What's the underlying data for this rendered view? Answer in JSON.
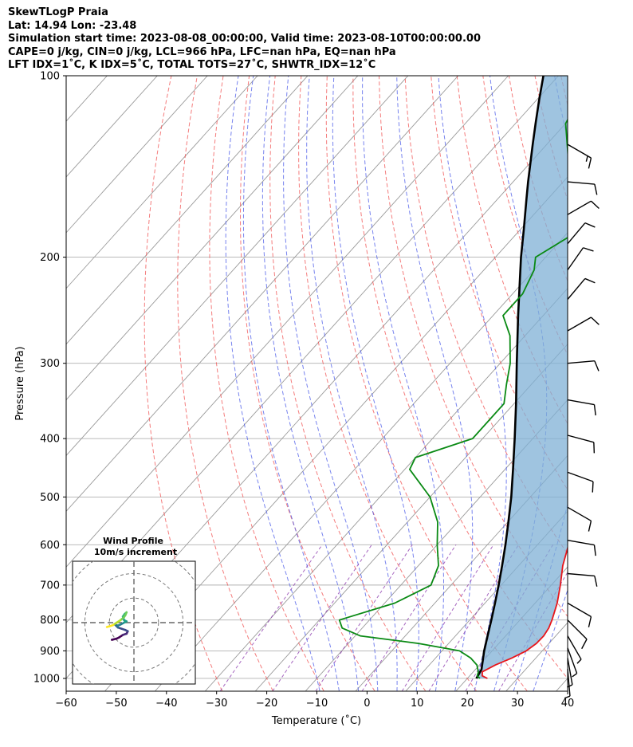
{
  "header": {
    "line1": "SkewTLogP Praia",
    "line2": "Lat: 14.94   Lon: -23.48",
    "line3": "Simulation start time: 2023-08-08_00:00:00, Valid time: 2023-08-10T00:00:00.00",
    "line4": "CAPE=0 j/kg, CIN=0 j/kg, LCL=966 hPa, LFC=nan hPa, EQ=nan hPa",
    "line5": "LFT IDX=1˚C, K IDX=5˚C, TOTAL TOTS=27˚C, SHWTR_IDX=12˚C"
  },
  "chart_data": {
    "type": "line",
    "title": "SkewTLogP Praia",
    "xlabel": "Temperature (˚C)",
    "ylabel": "Pressure (hPa)",
    "xlim": [
      -60,
      40
    ],
    "ylim": [
      1050,
      100
    ],
    "y_scale": "log",
    "grid": true,
    "x_ticks": [
      -60,
      -50,
      -40,
      -30,
      -20,
      -10,
      0,
      10,
      20,
      30,
      40
    ],
    "y_ticks": [
      100,
      200,
      300,
      400,
      500,
      600,
      700,
      800,
      900,
      1000
    ],
    "colors": {
      "temperature": "#e8161b",
      "dewpoint": "#0a8a14",
      "parcel": "#000000",
      "cape_fill": "#7fb0d6",
      "dry_adiabat": "#f05050",
      "moist_adiabat": "#4a5ae8",
      "mixing_ratio": "#9040b0",
      "isotherm": "#9a9a9a"
    },
    "series": [
      {
        "name": "temperature",
        "points": [
          [
            1000,
            24
          ],
          [
            990,
            22.5
          ],
          [
            975,
            21.8
          ],
          [
            950,
            23.2
          ],
          [
            925,
            25.2
          ],
          [
            900,
            26.8
          ],
          [
            875,
            27.5
          ],
          [
            850,
            27.6
          ],
          [
            825,
            27.2
          ],
          [
            800,
            26.4
          ],
          [
            750,
            24.4
          ],
          [
            700,
            21.8
          ],
          [
            650,
            18.8
          ],
          [
            600,
            16.2
          ],
          [
            550,
            13.4
          ],
          [
            500,
            10.4
          ],
          [
            450,
            7.2
          ],
          [
            400,
            4.2
          ],
          [
            350,
            -1.5
          ],
          [
            300,
            -8.5
          ],
          [
            250,
            -17.5
          ],
          [
            200,
            -28
          ],
          [
            180,
            -33
          ],
          [
            160,
            -40
          ],
          [
            150,
            -44
          ],
          [
            140,
            -48.5
          ],
          [
            130,
            -53
          ],
          [
            120,
            -58
          ],
          [
            110,
            -63
          ],
          [
            100,
            -67
          ]
        ]
      },
      {
        "name": "dewpoint",
        "points": [
          [
            1000,
            22.5
          ],
          [
            990,
            21.5
          ],
          [
            975,
            21
          ],
          [
            950,
            19.5
          ],
          [
            925,
            17
          ],
          [
            900,
            13.5
          ],
          [
            875,
            4
          ],
          [
            850,
            -9
          ],
          [
            825,
            -14
          ],
          [
            800,
            -16
          ],
          [
            750,
            -8
          ],
          [
            700,
            -4
          ],
          [
            650,
            -6
          ],
          [
            600,
            -10
          ],
          [
            550,
            -14
          ],
          [
            500,
            -20
          ],
          [
            450,
            -29
          ],
          [
            430,
            -30
          ],
          [
            400,
            -22
          ],
          [
            350,
            -22
          ],
          [
            325,
            -25
          ],
          [
            300,
            -28
          ],
          [
            270,
            -33
          ],
          [
            250,
            -38
          ],
          [
            230,
            -38
          ],
          [
            210,
            -40
          ],
          [
            200,
            -42
          ],
          [
            185,
            -39
          ],
          [
            170,
            -41
          ],
          [
            150,
            -48
          ],
          [
            135,
            -54
          ],
          [
            120,
            -60
          ],
          [
            108,
            -62
          ],
          [
            100,
            -64
          ]
        ]
      },
      {
        "name": "parcel",
        "points": [
          [
            1000,
            21.8
          ],
          [
            966,
            21.2
          ],
          [
            900,
            18.4
          ],
          [
            850,
            16.4
          ],
          [
            800,
            14.3
          ],
          [
            750,
            12
          ],
          [
            700,
            9.5
          ],
          [
            650,
            6.7
          ],
          [
            600,
            3.6
          ],
          [
            550,
            0.1
          ],
          [
            500,
            -3.8
          ],
          [
            450,
            -8.4
          ],
          [
            400,
            -13.6
          ],
          [
            350,
            -19.6
          ],
          [
            300,
            -26.7
          ],
          [
            250,
            -35
          ],
          [
            200,
            -44.9
          ],
          [
            180,
            -49.3
          ],
          [
            160,
            -54.3
          ],
          [
            150,
            -57
          ],
          [
            140,
            -59.8
          ],
          [
            130,
            -62.8
          ],
          [
            120,
            -66
          ],
          [
            110,
            -69.4
          ],
          [
            100,
            -73
          ]
        ]
      }
    ],
    "wind_barbs": [
      {
        "p": 130,
        "speed_kt": 15,
        "dir": 120
      },
      {
        "p": 150,
        "speed_kt": 10,
        "dir": 95
      },
      {
        "p": 170,
        "speed_kt": 10,
        "dir": 60
      },
      {
        "p": 190,
        "speed_kt": 10,
        "dir": 40
      },
      {
        "p": 210,
        "speed_kt": 10,
        "dir": 35
      },
      {
        "p": 235,
        "speed_kt": 10,
        "dir": 40
      },
      {
        "p": 265,
        "speed_kt": 10,
        "dir": 60
      },
      {
        "p": 300,
        "speed_kt": 10,
        "dir": 85
      },
      {
        "p": 345,
        "speed_kt": 10,
        "dir": 100
      },
      {
        "p": 395,
        "speed_kt": 10,
        "dir": 105
      },
      {
        "p": 455,
        "speed_kt": 10,
        "dir": 110
      },
      {
        "p": 520,
        "speed_kt": 10,
        "dir": 120
      },
      {
        "p": 590,
        "speed_kt": 10,
        "dir": 100
      },
      {
        "p": 670,
        "speed_kt": 10,
        "dir": 95
      },
      {
        "p": 750,
        "speed_kt": 10,
        "dir": 120
      },
      {
        "p": 800,
        "speed_kt": 10,
        "dir": 135
      },
      {
        "p": 850,
        "speed_kt": 5,
        "dir": 150
      },
      {
        "p": 890,
        "speed_kt": 5,
        "dir": 160
      },
      {
        "p": 925,
        "speed_kt": 5,
        "dir": 170
      },
      {
        "p": 965,
        "speed_kt": 5,
        "dir": 175
      }
    ],
    "hodograph": {
      "title": "Wind Profile",
      "subtitle": "10m/s increment",
      "rings_ms": [
        10,
        20,
        30
      ],
      "range_ms": 25,
      "colormap": "viridis",
      "points_uv": [
        [
          -9,
          -7
        ],
        [
          -7,
          -6.5
        ],
        [
          -6,
          -6
        ],
        [
          -4.5,
          -5
        ],
        [
          -3,
          -4.5
        ],
        [
          -2.5,
          -3.5
        ],
        [
          -3.5,
          -3
        ],
        [
          -5,
          -2.5
        ],
        [
          -6.5,
          -2
        ],
        [
          -7.5,
          -1
        ],
        [
          -6.5,
          -1.2
        ],
        [
          -5.5,
          -0.8
        ],
        [
          -4,
          0
        ],
        [
          -3,
          0.5
        ],
        [
          -4,
          1
        ],
        [
          -4.5,
          2.5
        ],
        [
          -3.8,
          3.5
        ],
        [
          -3,
          4.2
        ],
        [
          -3.5,
          3
        ],
        [
          -4.2,
          2
        ],
        [
          -5.5,
          1
        ],
        [
          -7,
          0
        ],
        [
          -8.5,
          -1
        ],
        [
          -10,
          -1.5
        ],
        [
          -11,
          -1.8
        ]
      ]
    }
  }
}
